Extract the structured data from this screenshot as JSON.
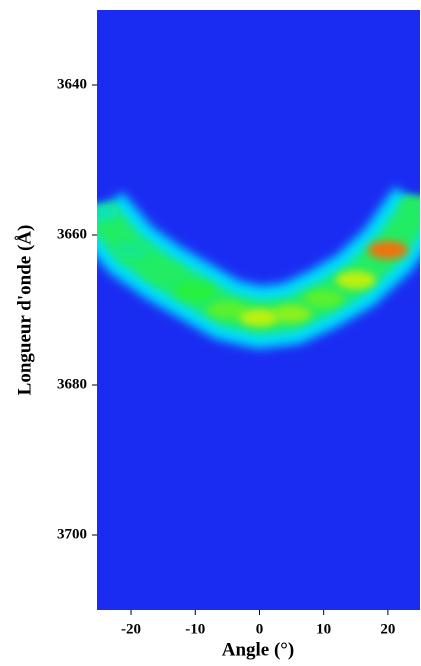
{
  "chart_data": {
    "type": "heatmap",
    "xlabel": "Angle (°)",
    "ylabel": "Longueur d'onde (Å)",
    "x": [
      -25,
      -20,
      -15,
      -10,
      -5,
      0,
      5,
      10,
      15,
      20,
      25
    ],
    "values": [
      3657,
      3662,
      3665,
      3667.5,
      3670,
      3671,
      3670.5,
      3668.5,
      3666,
      3662,
      3656
    ],
    "intensity": [
      0.4,
      0.45,
      0.5,
      0.55,
      0.6,
      0.7,
      0.65,
      0.6,
      0.7,
      0.9,
      0.5
    ],
    "background": "#1a2cf2",
    "xlim": [
      -25.3,
      25
    ],
    "xticks": [
      -20,
      -10,
      0,
      10,
      20
    ],
    "ylim": [
      3710,
      3630
    ],
    "yticks": [
      3640,
      3660,
      3680,
      3700
    ]
  }
}
